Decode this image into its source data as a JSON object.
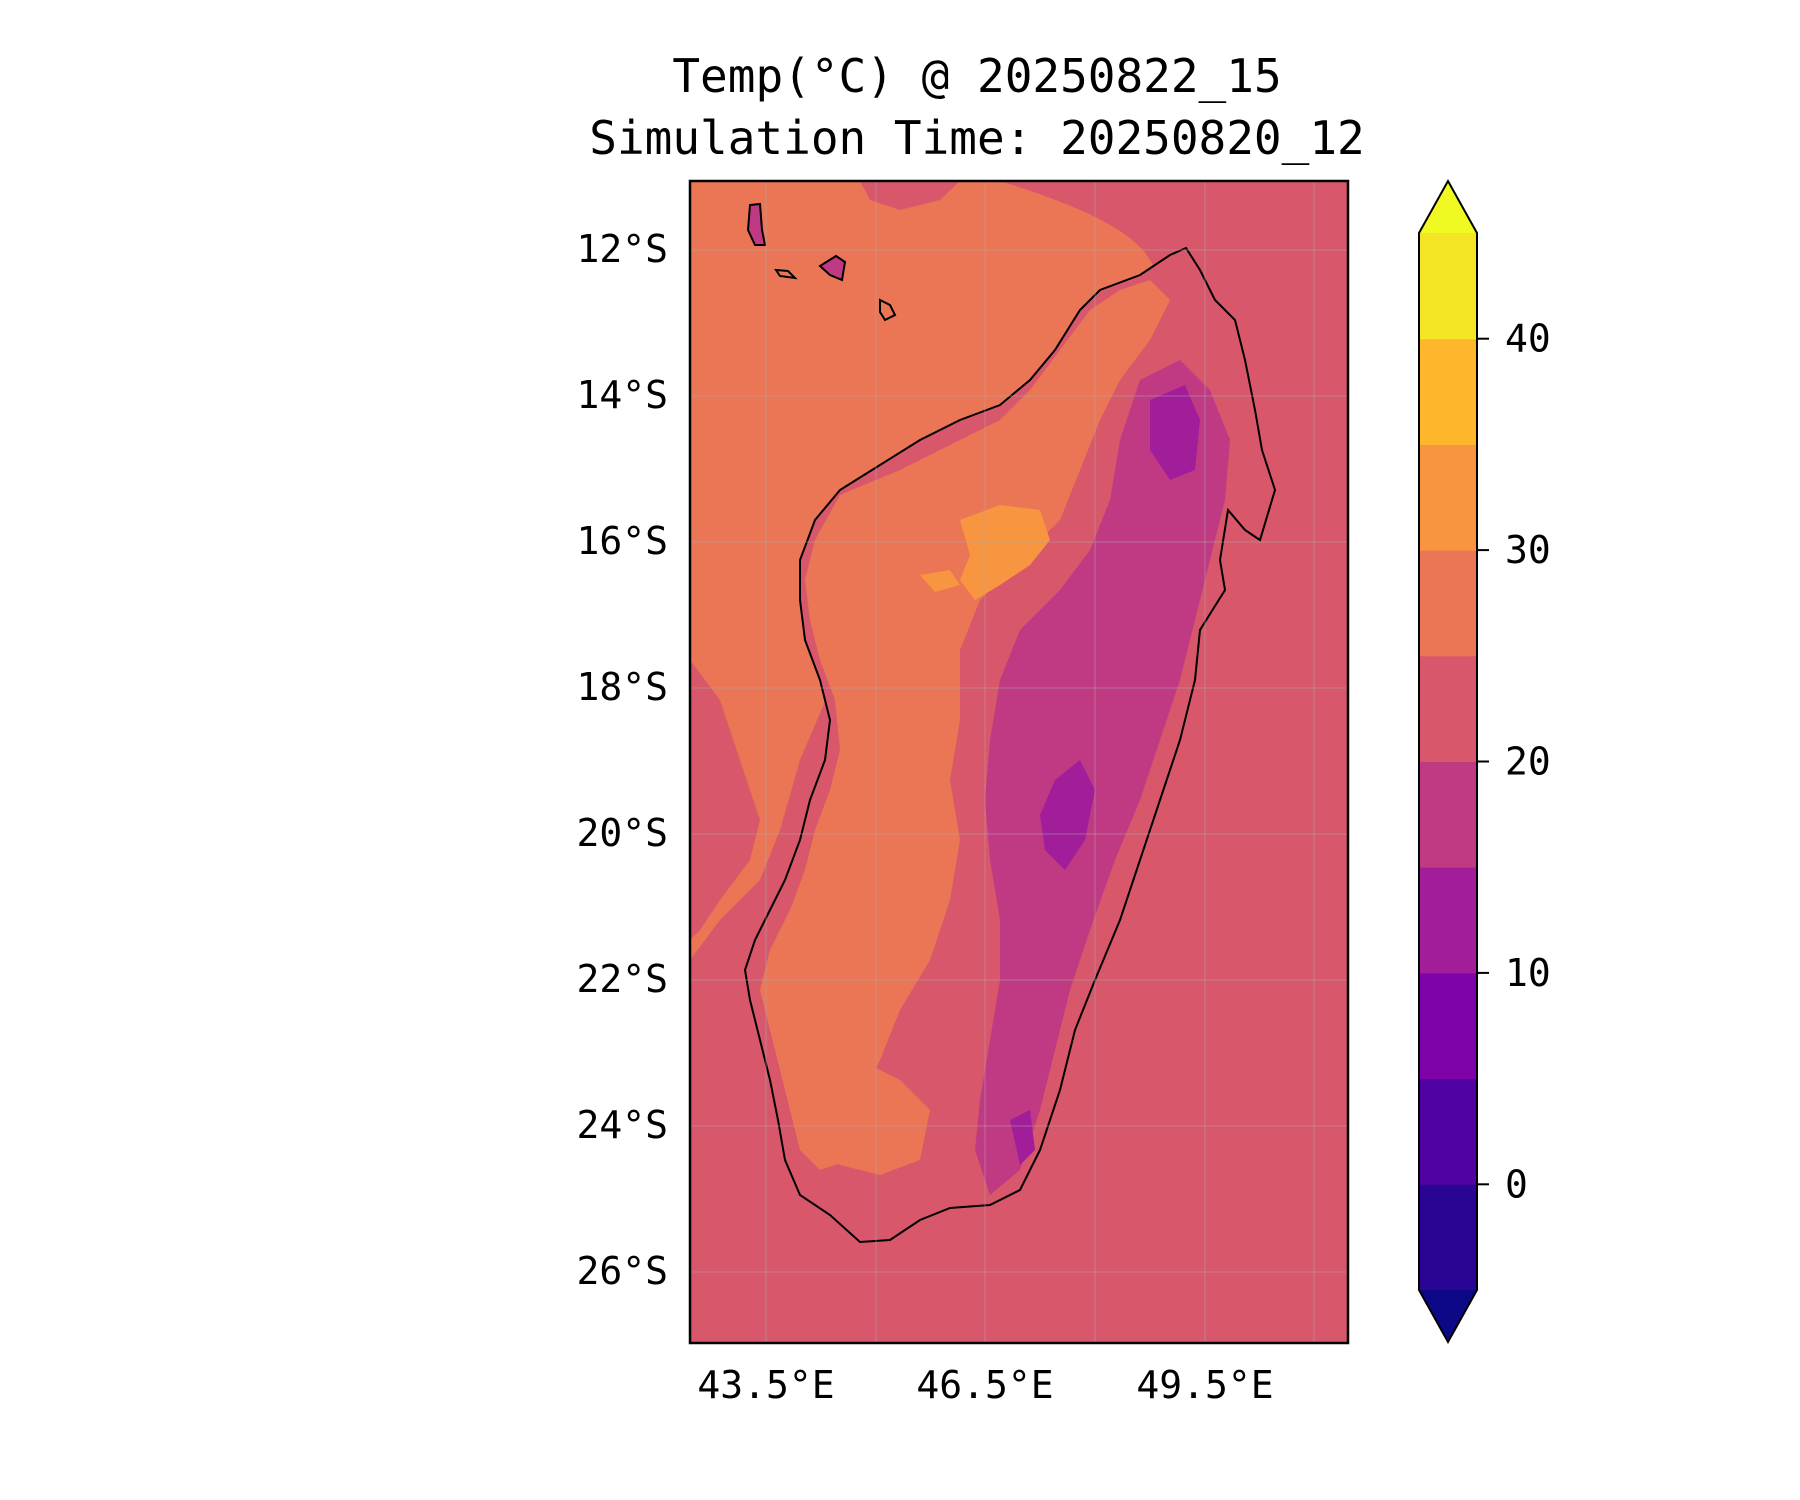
{
  "title": "Temp(°C) @ 20250822_15",
  "subtitle": "Simulation Time: 20250820_12",
  "map": {
    "latitude_ticks": [
      "12°S",
      "14°S",
      "16°S",
      "18°S",
      "20°S",
      "22°S",
      "24°S",
      "26°S"
    ],
    "longitude_ticks": [
      "43.5°E",
      "46.5°E",
      "49.5°E"
    ],
    "lon_range": [
      41.5,
      50.5
    ],
    "lat_range": [
      -27,
      -11
    ],
    "region": "Madagascar"
  },
  "colorbar": {
    "tick_labels": [
      "40",
      "30",
      "20",
      "10",
      "0"
    ],
    "levels": [
      -5,
      0,
      5,
      10,
      15,
      20,
      25,
      30,
      35,
      40,
      45
    ],
    "extend": "both",
    "colormap": "plasma",
    "colors": [
      "#0d0887",
      "#2a0593",
      "#5002a2",
      "#7e03a8",
      "#a21d9a",
      "#c03a83",
      "#d8576b",
      "#eb7655",
      "#f89540",
      "#feb72d",
      "#f4e525",
      "#f0f921"
    ]
  },
  "colors": {
    "ocean": "#d8576b",
    "warm_land": "#eb7655",
    "hot_land": "#f89540",
    "highland": "#c03a83",
    "cool_highland": "#a21d9a",
    "coast_line": "#000000"
  }
}
